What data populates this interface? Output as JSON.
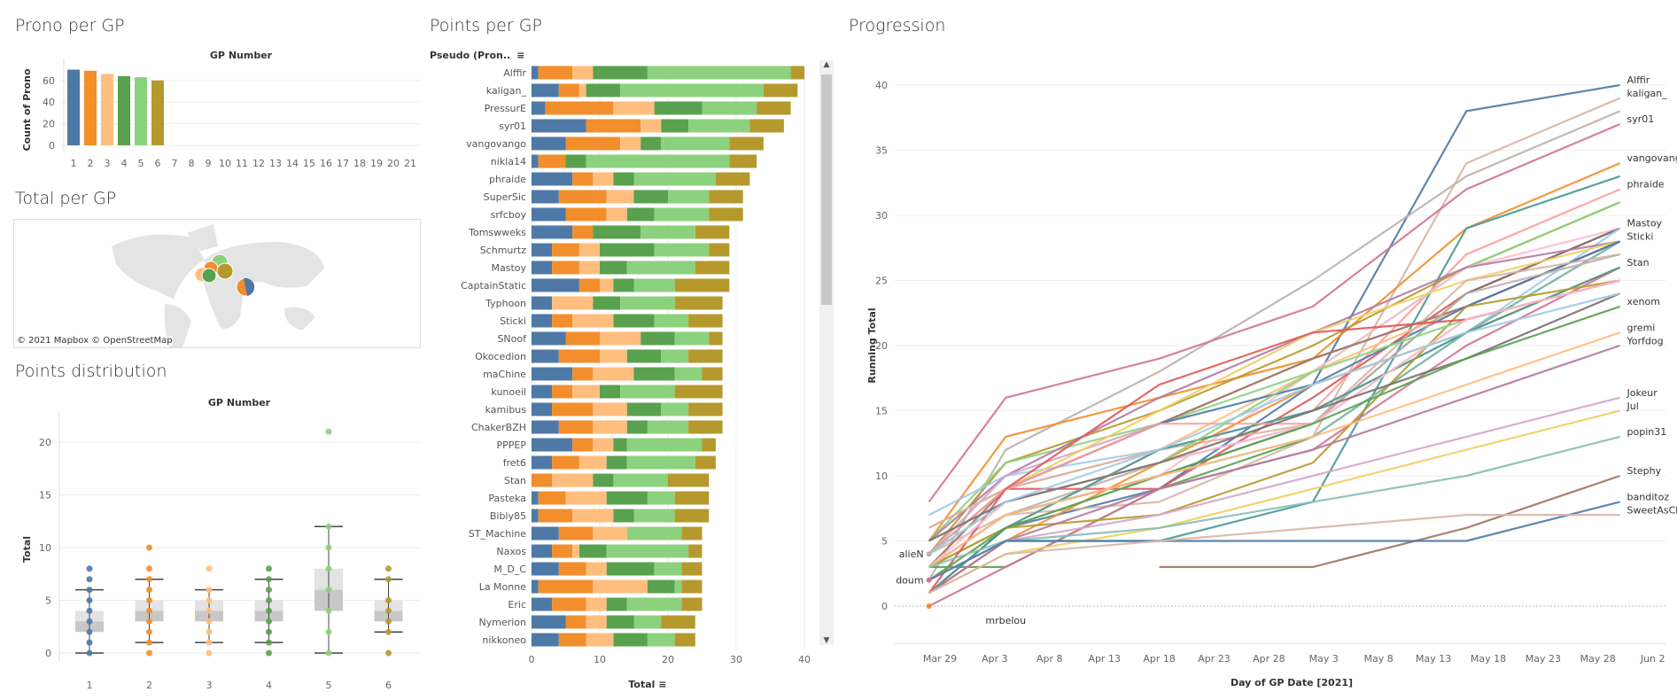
{
  "colors": {
    "gp": [
      "#4e79a7",
      "#f28e2b",
      "#ffbe7d",
      "#59a14f",
      "#8cd17d",
      "#b6992d"
    ],
    "lines": [
      "#4e79a7",
      "#d7b5a6",
      "#bab0ac",
      "#d37295",
      "#f28e2b",
      "#499894",
      "#ff9d9a",
      "#b6992d",
      "#8cd17d",
      "#e15759",
      "#fabfd2",
      "#79706e",
      "#a0cbe8",
      "#59a14f",
      "#ffbe7d",
      "#b07aa1",
      "#d4a6c8",
      "#f1ce63",
      "#86bcb6",
      "#9d7660"
    ]
  },
  "prono": {
    "title": "Prono per GP",
    "chart_data": {
      "type": "bar",
      "xlabel": "GP Number",
      "ylabel": "Count of Prono",
      "categories": [
        "1",
        "2",
        "3",
        "4",
        "5",
        "6",
        "7",
        "8",
        "9",
        "10",
        "11",
        "12",
        "13",
        "14",
        "15",
        "16",
        "17",
        "18",
        "19",
        "20",
        "21"
      ],
      "values": [
        70,
        69,
        66,
        64,
        63,
        60,
        null,
        null,
        null,
        null,
        null,
        null,
        null,
        null,
        null,
        null,
        null,
        null,
        null,
        null,
        null
      ],
      "yticks": [
        0,
        20,
        40,
        60
      ],
      "grid": true
    }
  },
  "map": {
    "title": "Total per GP",
    "attribution": "© 2021 Mapbox  © OpenStreetMap",
    "type": "map-pies"
  },
  "distribution": {
    "title": "Points distribution",
    "chart_data": {
      "type": "box",
      "xlabel": "GP Number",
      "ylabel": "Total",
      "categories": [
        "1",
        "2",
        "3",
        "4",
        "5",
        "6"
      ],
      "yticks": [
        0,
        5,
        10,
        15,
        20
      ],
      "boxes": [
        {
          "min": 0,
          "q1": 2,
          "median": 3,
          "q3": 4,
          "max": 6,
          "points": [
            0,
            1,
            2,
            3,
            4,
            5,
            6,
            7,
            8
          ]
        },
        {
          "min": 1,
          "q1": 3,
          "median": 4,
          "q3": 5,
          "max": 7,
          "points": [
            0,
            1,
            2,
            3,
            4,
            5,
            6,
            7,
            8,
            10
          ]
        },
        {
          "min": 1,
          "q1": 3,
          "median": 4,
          "q3": 5,
          "max": 6,
          "points": [
            0,
            1,
            2,
            3,
            4,
            5,
            6,
            8
          ]
        },
        {
          "min": 1,
          "q1": 3,
          "median": 4,
          "q3": 5,
          "max": 7,
          "points": [
            0,
            1,
            2,
            3,
            4,
            5,
            6,
            7,
            8
          ]
        },
        {
          "min": 0,
          "q1": 4,
          "median": 6,
          "q3": 8,
          "max": 12,
          "points": [
            0,
            2,
            4,
            6,
            8,
            10,
            12,
            21
          ]
        },
        {
          "min": 2,
          "q1": 3,
          "median": 4,
          "q3": 5,
          "max": 7,
          "points": [
            0,
            2,
            3,
            4,
            5,
            7,
            8
          ]
        }
      ]
    }
  },
  "points": {
    "title": "Points per GP",
    "row_header": "Pseudo (Pron..",
    "chart_data": {
      "type": "bar",
      "orientation": "horizontal-stacked",
      "xlabel": "Total",
      "xticks": [
        0,
        10,
        20,
        30,
        40
      ],
      "series_names": [
        "1",
        "2",
        "3",
        "4",
        "5",
        "6"
      ],
      "rows": [
        {
          "name": "Alffir",
          "values": [
            1,
            5,
            3,
            8,
            21,
            2
          ]
        },
        {
          "name": "kaligan_",
          "values": [
            4,
            3,
            1,
            5,
            21,
            5
          ]
        },
        {
          "name": "PressurE",
          "values": [
            2,
            10,
            6,
            7,
            8,
            5
          ]
        },
        {
          "name": "syr01",
          "values": [
            8,
            8,
            3,
            4,
            9,
            5
          ]
        },
        {
          "name": "vangovango",
          "values": [
            5,
            8,
            3,
            3,
            10,
            5
          ]
        },
        {
          "name": "nikla14",
          "values": [
            1,
            4,
            0,
            3,
            21,
            4
          ]
        },
        {
          "name": "phraide",
          "values": [
            6,
            3,
            3,
            3,
            12,
            5
          ]
        },
        {
          "name": "SuperSic",
          "values": [
            4,
            7,
            4,
            5,
            6,
            5
          ]
        },
        {
          "name": "srfcboy",
          "values": [
            5,
            6,
            3,
            4,
            8,
            5
          ]
        },
        {
          "name": "Tomswweks",
          "values": [
            6,
            3,
            0,
            7,
            8,
            5
          ]
        },
        {
          "name": "Schmurtz",
          "values": [
            3,
            4,
            3,
            8,
            8,
            3
          ]
        },
        {
          "name": "Mastoy",
          "values": [
            3,
            4,
            3,
            4,
            10,
            5
          ]
        },
        {
          "name": "CaptainStatic",
          "values": [
            7,
            3,
            2,
            3,
            6,
            8
          ]
        },
        {
          "name": "Typhoon",
          "values": [
            3,
            0,
            6,
            4,
            8,
            7
          ]
        },
        {
          "name": "Sticki",
          "values": [
            3,
            3,
            6,
            6,
            5,
            5
          ]
        },
        {
          "name": "SNoof",
          "values": [
            5,
            5,
            6,
            5,
            5,
            2
          ]
        },
        {
          "name": "Okocedion",
          "values": [
            4,
            6,
            4,
            5,
            4,
            5
          ]
        },
        {
          "name": "maChine",
          "values": [
            6,
            3,
            6,
            6,
            4,
            3
          ]
        },
        {
          "name": "kunoeil",
          "values": [
            3,
            3,
            4,
            3,
            8,
            7
          ]
        },
        {
          "name": "kamibus",
          "values": [
            3,
            6,
            5,
            5,
            4,
            5
          ]
        },
        {
          "name": "ChakerBZH",
          "values": [
            4,
            5,
            5,
            3,
            6,
            5
          ]
        },
        {
          "name": "PPPEP",
          "values": [
            6,
            3,
            3,
            2,
            11,
            2
          ]
        },
        {
          "name": "fret6",
          "values": [
            3,
            4,
            4,
            3,
            10,
            3
          ]
        },
        {
          "name": "Stan",
          "values": [
            0,
            3,
            6,
            3,
            8,
            6
          ]
        },
        {
          "name": "Pasteka",
          "values": [
            1,
            4,
            6,
            6,
            4,
            5
          ]
        },
        {
          "name": "Bibly85",
          "values": [
            1,
            5,
            6,
            3,
            6,
            5
          ]
        },
        {
          "name": "ST_Machine",
          "values": [
            4,
            5,
            5,
            0,
            8,
            3
          ]
        },
        {
          "name": "Naxos",
          "values": [
            3,
            3,
            1,
            4,
            12,
            2
          ]
        },
        {
          "name": "M_D_C",
          "values": [
            4,
            4,
            3,
            7,
            4,
            3
          ]
        },
        {
          "name": "La Monne",
          "values": [
            1,
            8,
            8,
            4,
            1,
            3
          ]
        },
        {
          "name": "Eric",
          "values": [
            3,
            5,
            3,
            3,
            8,
            3
          ]
        },
        {
          "name": "Nymerion",
          "values": [
            5,
            3,
            3,
            4,
            4,
            5
          ]
        },
        {
          "name": "nikkoneo",
          "values": [
            4,
            4,
            4,
            5,
            4,
            3
          ]
        }
      ]
    }
  },
  "progression": {
    "title": "Progression",
    "chart_data": {
      "type": "line",
      "xlabel": "Day of GP Date [2021]",
      "ylabel": "Running Total",
      "gp_dates": [
        "2021-03-28",
        "2021-04-04",
        "2021-04-18",
        "2021-05-02",
        "2021-05-16",
        "2021-05-30"
      ],
      "xticks": [
        "Mar 29",
        "Apr 3",
        "Apr 8",
        "Apr 13",
        "Apr 18",
        "Apr 23",
        "Apr 28",
        "May 3",
        "May 8",
        "May 13",
        "May 18",
        "May 23",
        "May 28",
        "Jun 2"
      ],
      "yticks": [
        0,
        5,
        10,
        15,
        20,
        25,
        30,
        35,
        40
      ],
      "ylim": [
        -3,
        42
      ],
      "series_from_points_per_gp": true,
      "end_labels": [
        "Alffir",
        "kaligan_",
        "syr01",
        "vangovango",
        "phraide",
        "Mastoy",
        "Sticki",
        "Stan",
        "xenom",
        "gremi",
        "Yorfdog",
        "Jokeur",
        "Jul",
        "popin31",
        "Stephy",
        "banditoz",
        "SweetAsChurBro"
      ],
      "start_labels": [
        "alieN",
        "doum",
        "mrbelou"
      ],
      "extra_series": [
        {
          "name": "xenom",
          "values": [
            2,
            6,
            10,
            14,
            19,
            23
          ]
        },
        {
          "name": "gremi",
          "values": [
            3,
            7,
            10,
            13,
            17,
            21
          ]
        },
        {
          "name": "Yorfdog",
          "values": [
            1,
            5,
            9,
            12,
            16,
            20
          ]
        },
        {
          "name": "Jokeur",
          "values": [
            2,
            5,
            7,
            10,
            13,
            16
          ]
        },
        {
          "name": "Jul",
          "values": [
            1,
            4,
            6,
            9,
            12,
            15
          ]
        },
        {
          "name": "popin31",
          "values": [
            3,
            5,
            6,
            8,
            10,
            13
          ]
        },
        {
          "name": "Stephy",
          "values": [
            null,
            null,
            3,
            3,
            6,
            10
          ]
        },
        {
          "name": "banditoz",
          "values": [
            2,
            5,
            5,
            5,
            5,
            8
          ]
        },
        {
          "name": "SweetAsChurBro",
          "values": [
            1,
            4,
            5,
            6,
            7,
            7
          ]
        },
        {
          "name": "alieN",
          "values": [
            4
          ]
        },
        {
          "name": "doum",
          "values": [
            2
          ]
        },
        {
          "name": "mrbelou",
          "values": [
            0
          ]
        }
      ]
    }
  }
}
